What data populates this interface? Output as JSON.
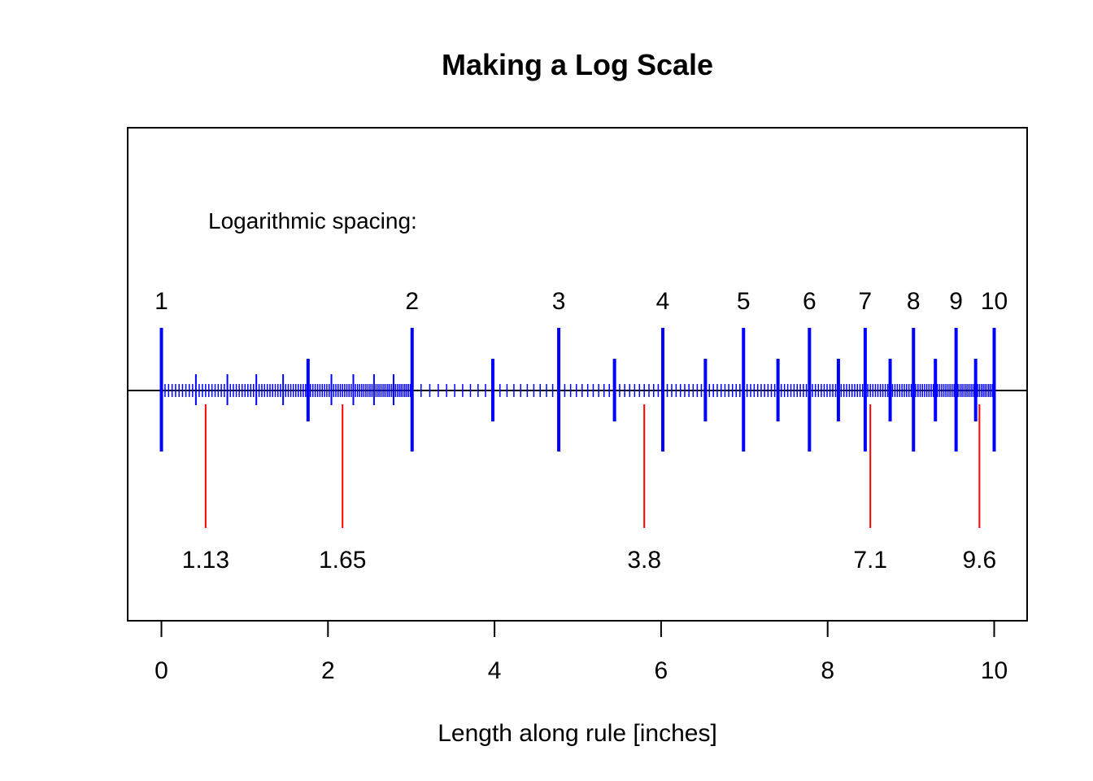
{
  "chart_data": {
    "type": "log-scale-ruler",
    "title": "Making a Log Scale",
    "xlabel": "Length along rule [inches]",
    "xlim": [
      0,
      10
    ],
    "x_ticks": [
      0,
      2,
      4,
      6,
      8,
      10
    ],
    "x_tick_labels": [
      "0",
      "2",
      "4",
      "6",
      "8",
      "10"
    ],
    "annotation": "Logarithmic spacing:",
    "scale_range": [
      1,
      10
    ],
    "rule_length_inches": 10,
    "major_ticks": [
      1,
      2,
      3,
      4,
      5,
      6,
      7,
      8,
      9,
      10
    ],
    "major_tick_labels": [
      "1",
      "2",
      "3",
      "4",
      "5",
      "6",
      "7",
      "8",
      "9",
      "10"
    ],
    "mid_tick_step": 0.5,
    "minor_tick_step_by_decade_part": [
      {
        "from": 1,
        "to": 2,
        "step": 0.01,
        "medium_step": 0.1
      },
      {
        "from": 2,
        "to": 5,
        "step": 0.05,
        "medium_step": 0.5
      },
      {
        "from": 5,
        "to": 10,
        "step": 0.05,
        "medium_step": 0.5
      }
    ],
    "colors": {
      "ruler": "#0000ff",
      "marker": "#ff0000",
      "axis": "#000000"
    },
    "marked_values": [
      1.13,
      1.65,
      3.8,
      7.1,
      9.6
    ],
    "marked_value_labels": [
      "1.13",
      "1.65",
      "3.8",
      "7.1",
      "9.6"
    ]
  }
}
